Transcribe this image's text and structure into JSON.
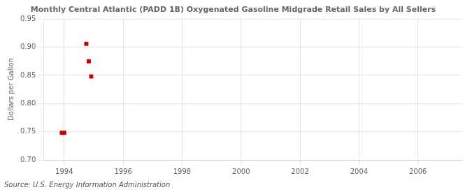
{
  "chart_data": {
    "type": "scatter",
    "title": "Monthly Central Atlantic (PADD 1B) Oxygenated Gasoline Midgrade Retail Sales by All Sellers",
    "ylabel": "Dollars per Gallon",
    "source": "Source: U.S. Energy Information Administration",
    "x": [
      1993.92,
      1994.0,
      1994.75,
      1994.833,
      1994.917
    ],
    "values": [
      0.748,
      0.748,
      0.906,
      0.875,
      0.848
    ],
    "color": "#CC0000",
    "marker": "square",
    "xlim": [
      1993.3,
      2007.5
    ],
    "ylim": [
      0.7,
      0.95
    ],
    "xticks": [
      1994,
      1996,
      1998,
      2000,
      2002,
      2004,
      2006
    ],
    "yticks": [
      {
        "value": 0.7,
        "label": "0.70"
      },
      0.75,
      {
        "value": 0.8,
        "label": "0.80"
      },
      0.85,
      {
        "value": 0.9,
        "label": "0.90"
      },
      0.95
    ],
    "grid": true
  }
}
